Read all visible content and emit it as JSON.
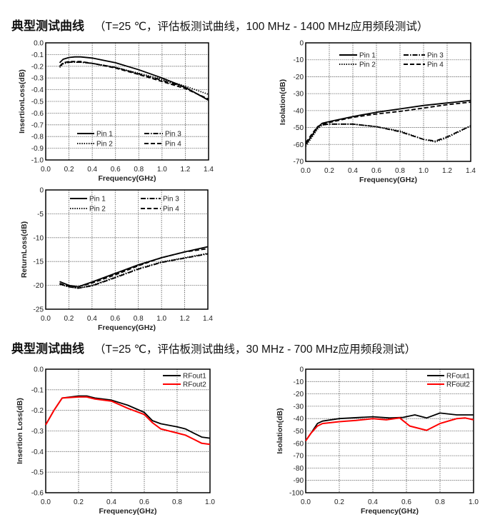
{
  "sections": [
    {
      "title_bold": "典型测试曲线",
      "title_rest": "（T=25 ℃，评估板测试曲线，100 MHz - 1400 MHz应用频段测试）"
    },
    {
      "title_bold": "典型测试曲线",
      "title_rest": "（T=25 ℃，评估板测试曲线，30 MHz - 700 MHz应用频段测试）"
    }
  ],
  "chart_data": [
    {
      "type": "line",
      "xlabel": "Frequency(GHz)",
      "ylabel": "InsertionLoss(dB)",
      "xlim": [
        0,
        1.4
      ],
      "ylim": [
        -1.0,
        0.0
      ],
      "grid": true,
      "legend": "bottom-left",
      "xticks": [
        "0.0",
        "0.2",
        "0.4",
        "0.6",
        "0.8",
        "1.0",
        "1.2",
        "1.4"
      ],
      "yticks": [
        "0.0",
        "-0.1",
        "-0.2",
        "-0.3",
        "-0.4",
        "-0.5",
        "-0.6",
        "-0.7",
        "-0.8",
        "-0.9",
        "-1.0"
      ],
      "series": [
        {
          "name": "Pin 1",
          "style": "solid",
          "color": "#000000",
          "points": [
            [
              0.12,
              -0.17
            ],
            [
              0.15,
              -0.14
            ],
            [
              0.2,
              -0.125
            ],
            [
              0.25,
              -0.12
            ],
            [
              0.3,
              -0.12
            ],
            [
              0.4,
              -0.13
            ],
            [
              0.6,
              -0.17
            ],
            [
              0.8,
              -0.23
            ],
            [
              1.0,
              -0.3
            ],
            [
              1.2,
              -0.38
            ],
            [
              1.4,
              -0.49
            ]
          ]
        },
        {
          "name": "Pin 2",
          "style": "dotted",
          "color": "#000000",
          "points": [
            [
              0.12,
              -0.21
            ],
            [
              0.15,
              -0.18
            ],
            [
              0.2,
              -0.165
            ],
            [
              0.3,
              -0.165
            ],
            [
              0.4,
              -0.175
            ],
            [
              0.6,
              -0.21
            ],
            [
              0.8,
              -0.26
            ],
            [
              1.0,
              -0.31
            ],
            [
              1.2,
              -0.37
            ],
            [
              1.4,
              -0.44
            ]
          ]
        },
        {
          "name": "Pin 3",
          "style": "dashdot",
          "color": "#000000",
          "points": [
            [
              0.12,
              -0.2
            ],
            [
              0.15,
              -0.175
            ],
            [
              0.2,
              -0.165
            ],
            [
              0.3,
              -0.165
            ],
            [
              0.4,
              -0.175
            ],
            [
              0.6,
              -0.21
            ],
            [
              0.8,
              -0.265
            ],
            [
              1.0,
              -0.32
            ],
            [
              1.2,
              -0.38
            ],
            [
              1.4,
              -0.49
            ]
          ]
        },
        {
          "name": "Pin 4",
          "style": "dashed",
          "color": "#000000",
          "points": [
            [
              0.12,
              -0.2
            ],
            [
              0.15,
              -0.17
            ],
            [
              0.2,
              -0.16
            ],
            [
              0.3,
              -0.16
            ],
            [
              0.4,
              -0.175
            ],
            [
              0.6,
              -0.215
            ],
            [
              0.8,
              -0.27
            ],
            [
              1.0,
              -0.33
            ],
            [
              1.2,
              -0.39
            ],
            [
              1.4,
              -0.48
            ]
          ]
        }
      ]
    },
    {
      "type": "line",
      "xlabel": "Frequency(GHz)",
      "ylabel": "Isolation(dB)",
      "xlim": [
        0,
        1.4
      ],
      "ylim": [
        -70,
        0
      ],
      "grid": true,
      "legend": "top",
      "xticks": [
        "0.0",
        "0.2",
        "0.4",
        "0.6",
        "0.8",
        "1.0",
        "1.2",
        "1.4"
      ],
      "yticks": [
        "0",
        "-10",
        "-20",
        "-30",
        "-40",
        "-50",
        "-60",
        "-70"
      ],
      "series": [
        {
          "name": "Pin 1",
          "style": "solid",
          "color": "#000000",
          "points": [
            [
              0,
              -60
            ],
            [
              0.05,
              -55
            ],
            [
              0.1,
              -50
            ],
            [
              0.14,
              -47.5
            ],
            [
              0.2,
              -46.5
            ],
            [
              0.4,
              -43.5
            ],
            [
              0.6,
              -41
            ],
            [
              0.8,
              -39
            ],
            [
              1.0,
              -37
            ],
            [
              1.2,
              -35.5
            ],
            [
              1.4,
              -34
            ]
          ]
        },
        {
          "name": "Pin 2",
          "style": "dotted",
          "color": "#000000",
          "points": [
            [
              0,
              -61
            ],
            [
              0.05,
              -56
            ],
            [
              0.1,
              -51
            ],
            [
              0.14,
              -48.5
            ],
            [
              0.2,
              -48
            ],
            [
              0.4,
              -48
            ],
            [
              0.6,
              -49.5
            ],
            [
              0.8,
              -52
            ],
            [
              1.0,
              -57
            ],
            [
              1.1,
              -58.5
            ],
            [
              1.2,
              -56
            ],
            [
              1.4,
              -49
            ]
          ]
        },
        {
          "name": "Pin 3",
          "style": "dashdot",
          "color": "#000000",
          "points": [
            [
              0,
              -60
            ],
            [
              0.05,
              -55
            ],
            [
              0.1,
              -50
            ],
            [
              0.14,
              -48.5
            ],
            [
              0.2,
              -48
            ],
            [
              0.4,
              -48
            ],
            [
              0.6,
              -49.5
            ],
            [
              0.8,
              -52.5
            ],
            [
              1.0,
              -57
            ],
            [
              1.1,
              -58
            ],
            [
              1.2,
              -55.5
            ],
            [
              1.4,
              -49
            ]
          ]
        },
        {
          "name": "Pin 4",
          "style": "dashed",
          "color": "#000000",
          "points": [
            [
              0,
              -59
            ],
            [
              0.05,
              -54
            ],
            [
              0.1,
              -49.5
            ],
            [
              0.14,
              -48
            ],
            [
              0.2,
              -47
            ],
            [
              0.4,
              -44
            ],
            [
              0.6,
              -42
            ],
            [
              0.8,
              -40.5
            ],
            [
              1.0,
              -38.5
            ],
            [
              1.2,
              -36.5
            ],
            [
              1.4,
              -35
            ]
          ]
        }
      ]
    },
    {
      "type": "line",
      "xlabel": "Frequency(GHz)",
      "ylabel": "ReturnLoss(dB)",
      "xlim": [
        0,
        1.4
      ],
      "ylim": [
        -25,
        0
      ],
      "grid": true,
      "legend": "top",
      "xticks": [
        "0.0",
        "0.2",
        "0.4",
        "0.6",
        "0.8",
        "1.0",
        "1.2",
        "1.4"
      ],
      "yticks": [
        "0",
        "-5",
        "-10",
        "-15",
        "-20",
        "-25"
      ],
      "series": [
        {
          "name": "Pin 1",
          "style": "solid",
          "color": "#000000",
          "points": [
            [
              0.12,
              -19.2
            ],
            [
              0.2,
              -20
            ],
            [
              0.28,
              -20.3
            ],
            [
              0.4,
              -19.3
            ],
            [
              0.6,
              -17.5
            ],
            [
              0.8,
              -15.7
            ],
            [
              1.0,
              -14.2
            ],
            [
              1.2,
              -13
            ],
            [
              1.4,
              -11.9
            ]
          ]
        },
        {
          "name": "Pin 2",
          "style": "dotted",
          "color": "#000000",
          "points": [
            [
              0.12,
              -19.8
            ],
            [
              0.2,
              -20.3
            ],
            [
              0.28,
              -20.6
            ],
            [
              0.4,
              -20
            ],
            [
              0.6,
              -18.3
            ],
            [
              0.8,
              -16.5
            ],
            [
              1.0,
              -15.1
            ],
            [
              1.2,
              -14.2
            ],
            [
              1.4,
              -13.3
            ]
          ]
        },
        {
          "name": "Pin 3",
          "style": "dashdot",
          "color": "#000000",
          "points": [
            [
              0.12,
              -19.7
            ],
            [
              0.2,
              -20.3
            ],
            [
              0.28,
              -20.6
            ],
            [
              0.4,
              -20.1
            ],
            [
              0.6,
              -18.4
            ],
            [
              0.8,
              -16.6
            ],
            [
              1.0,
              -15.2
            ],
            [
              1.2,
              -14.3
            ],
            [
              1.4,
              -13.4
            ]
          ]
        },
        {
          "name": "Pin 4",
          "style": "dashed",
          "color": "#000000",
          "points": [
            [
              0.12,
              -19.6
            ],
            [
              0.2,
              -20.2
            ],
            [
              0.28,
              -20.3
            ],
            [
              0.4,
              -19.5
            ],
            [
              0.6,
              -17.8
            ],
            [
              0.8,
              -15.9
            ],
            [
              1.0,
              -14.2
            ],
            [
              1.2,
              -13
            ],
            [
              1.4,
              -12.3
            ]
          ]
        }
      ]
    },
    {
      "type": "line",
      "xlabel": "Frequency(GHz)",
      "ylabel": "Insertion Loss(dB)",
      "xlim": [
        0,
        1.0
      ],
      "ylim": [
        -0.6,
        0.0
      ],
      "grid": true,
      "legend": "top-right",
      "xticks": [
        "0.0",
        "0.2",
        "0.4",
        "0.6",
        "0.8",
        "1.0"
      ],
      "yticks": [
        "0.0",
        "-0.1",
        "-0.2",
        "-0.3",
        "-0.4",
        "-0.5",
        "-0.6"
      ],
      "series": [
        {
          "name": "RFout1",
          "style": "solid",
          "color": "#000000",
          "points": [
            [
              0,
              -0.27
            ],
            [
              0.05,
              -0.2
            ],
            [
              0.1,
              -0.14
            ],
            [
              0.2,
              -0.13
            ],
            [
              0.25,
              -0.13
            ],
            [
              0.3,
              -0.14
            ],
            [
              0.4,
              -0.15
            ],
            [
              0.5,
              -0.175
            ],
            [
              0.6,
              -0.21
            ],
            [
              0.65,
              -0.25
            ],
            [
              0.7,
              -0.265
            ],
            [
              0.8,
              -0.28
            ],
            [
              0.85,
              -0.29
            ],
            [
              0.9,
              -0.31
            ],
            [
              0.95,
              -0.33
            ],
            [
              1.0,
              -0.335
            ]
          ]
        },
        {
          "name": "RFout2",
          "style": "solid",
          "color": "#ff0000",
          "points": [
            [
              0,
              -0.27
            ],
            [
              0.05,
              -0.2
            ],
            [
              0.1,
              -0.14
            ],
            [
              0.2,
              -0.135
            ],
            [
              0.25,
              -0.135
            ],
            [
              0.3,
              -0.145
            ],
            [
              0.4,
              -0.155
            ],
            [
              0.5,
              -0.19
            ],
            [
              0.6,
              -0.22
            ],
            [
              0.65,
              -0.26
            ],
            [
              0.7,
              -0.29
            ],
            [
              0.8,
              -0.31
            ],
            [
              0.85,
              -0.32
            ],
            [
              0.9,
              -0.34
            ],
            [
              0.95,
              -0.36
            ],
            [
              1.0,
              -0.365
            ]
          ]
        }
      ]
    },
    {
      "type": "line",
      "xlabel": "Frequency(GHz)",
      "ylabel": "Isolation(dB)",
      "xlim": [
        0,
        1.0
      ],
      "ylim": [
        -100,
        0
      ],
      "grid": true,
      "legend": "top-right",
      "xticks": [
        "0.0",
        "0.2",
        "0.4",
        "0.6",
        "0.8",
        "1.0"
      ],
      "yticks": [
        "0",
        "-10",
        "-20",
        "-30",
        "-40",
        "-50",
        "-60",
        "-70",
        "-80",
        "-90",
        "-100"
      ],
      "series": [
        {
          "name": "RFout1",
          "style": "solid",
          "color": "#000000",
          "points": [
            [
              0,
              -58
            ],
            [
              0.03,
              -52
            ],
            [
              0.07,
              -44
            ],
            [
              0.1,
              -42
            ],
            [
              0.2,
              -40
            ],
            [
              0.4,
              -38.5
            ],
            [
              0.5,
              -39.5
            ],
            [
              0.58,
              -39
            ],
            [
              0.65,
              -37
            ],
            [
              0.72,
              -39.5
            ],
            [
              0.8,
              -35.5
            ],
            [
              0.9,
              -37
            ],
            [
              1.0,
              -37
            ]
          ]
        },
        {
          "name": "RFout2",
          "style": "solid",
          "color": "#ff0000",
          "points": [
            [
              0,
              -58
            ],
            [
              0.03,
              -52
            ],
            [
              0.07,
              -46
            ],
            [
              0.1,
              -44
            ],
            [
              0.2,
              -42.5
            ],
            [
              0.3,
              -41.5
            ],
            [
              0.4,
              -40
            ],
            [
              0.48,
              -41
            ],
            [
              0.56,
              -39.5
            ],
            [
              0.62,
              -46
            ],
            [
              0.72,
              -49.5
            ],
            [
              0.8,
              -44
            ],
            [
              0.9,
              -40
            ],
            [
              0.95,
              -39.5
            ],
            [
              1.0,
              -41
            ]
          ]
        }
      ]
    }
  ]
}
